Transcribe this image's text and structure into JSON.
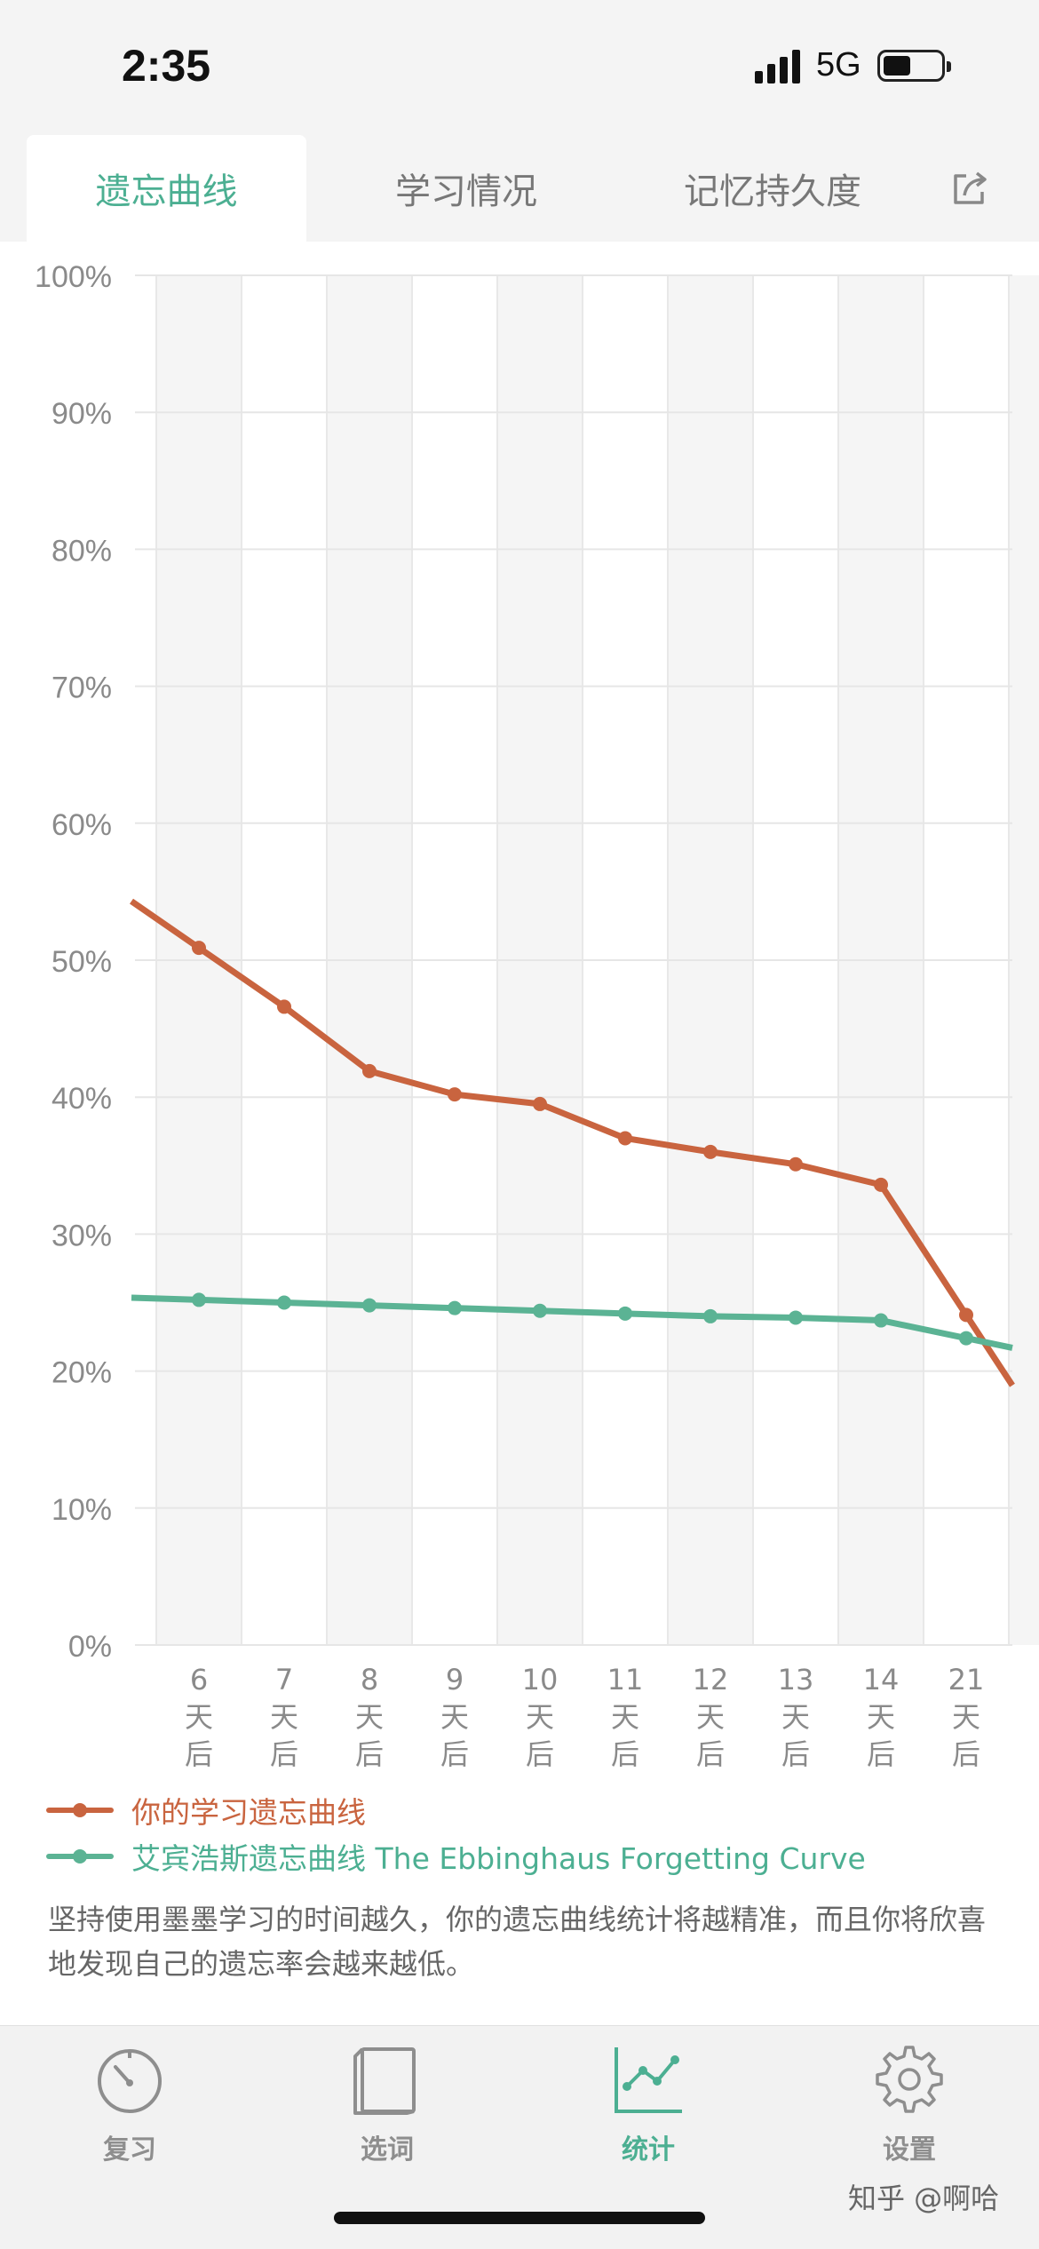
{
  "status": {
    "time": "2:35",
    "network": "5G"
  },
  "tabs": [
    {
      "label": "遗忘曲线",
      "active": true
    },
    {
      "label": "学习情况",
      "active": false
    },
    {
      "label": "记忆持久度",
      "active": false
    }
  ],
  "chart_data": {
    "type": "line",
    "ylim": [
      0,
      100
    ],
    "y_ticks": [
      "100%",
      "90%",
      "80%",
      "70%",
      "60%",
      "50%",
      "40%",
      "30%",
      "20%",
      "10%",
      "0%"
    ],
    "categories": [
      {
        "num": "6",
        "c1": "天",
        "c2": "后"
      },
      {
        "num": "7",
        "c1": "天",
        "c2": "后"
      },
      {
        "num": "8",
        "c1": "天",
        "c2": "后"
      },
      {
        "num": "9",
        "c1": "天",
        "c2": "后"
      },
      {
        "num": "10",
        "c1": "天",
        "c2": "后"
      },
      {
        "num": "11",
        "c1": "天",
        "c2": "后"
      },
      {
        "num": "12",
        "c1": "天",
        "c2": "后"
      },
      {
        "num": "13",
        "c1": "天",
        "c2": "后"
      },
      {
        "num": "14",
        "c1": "天",
        "c2": "后"
      },
      {
        "num": "21",
        "c1": "天",
        "c2": "后"
      }
    ],
    "series": [
      {
        "name": "你的学习遗忘曲线",
        "color": "#c9643f",
        "values": [
          50.9,
          46.6,
          41.9,
          40.2,
          39.5,
          37.0,
          36.0,
          35.1,
          33.6,
          24.1
        ]
      },
      {
        "name": "艾宾浩斯遗忘曲线 The Ebbinghaus Forgetting Curve",
        "color": "#5bb394",
        "values": [
          25.2,
          25.0,
          24.8,
          24.6,
          24.4,
          24.2,
          24.0,
          23.9,
          23.7,
          22.4
        ]
      }
    ],
    "grid": true
  },
  "note": "坚持使用墨墨学习的时间越久，你的遗忘曲线统计将越精准，而且你将欣喜地发现自己的遗忘率会越来越低。",
  "tabbar": [
    {
      "label": "复习",
      "icon": "stopwatch-icon",
      "active": false
    },
    {
      "label": "选词",
      "icon": "book-icon",
      "active": false
    },
    {
      "label": "统计",
      "icon": "stats-chart-icon",
      "active": true
    },
    {
      "label": "设置",
      "icon": "gear-icon",
      "active": false
    }
  ],
  "watermark": "知乎 @啊哈",
  "colors": {
    "accent": "#4caf92",
    "mine": "#c9643f",
    "ebbinghaus": "#5bb394"
  }
}
